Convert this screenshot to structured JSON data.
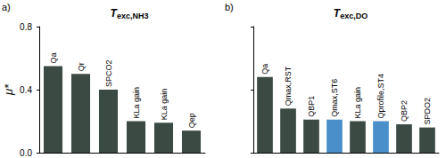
{
  "chart_data": [
    {
      "type": "bar",
      "panel": "a)",
      "title": "Texc,NH3",
      "y_label": "μ*",
      "categories": [
        "Qa",
        "Qr",
        "SPCO2",
        "KLa gain",
        "KLa gain",
        "Qep"
      ],
      "values": [
        0.55,
        0.5,
        0.4,
        0.2,
        0.19,
        0.14
      ],
      "color": "#3c4a44",
      "ylim": [
        0,
        0.8
      ],
      "yticks": [
        {
          "value": 0,
          "label": "0.0"
        },
        0.4,
        0.8
      ],
      "grid": false,
      "tick_labels": "y"
    },
    {
      "type": "bar",
      "panel": "b)",
      "title": "Texc,DO",
      "categories": [
        "Qa",
        "Qmax,RST",
        "QBP1",
        "Qmax,ST6",
        "KLa gain",
        "Qprofile,ST4",
        "QBP2",
        "SPDO2"
      ],
      "values": [
        0.48,
        0.28,
        0.21,
        0.21,
        0.2,
        0.2,
        0.18,
        0.16
      ],
      "colors": [
        "#3c4a44",
        "#3c4a44",
        "#3c4a44",
        "#4a8fc9",
        "#3c4a44",
        "#4a8fc9",
        "#3c4a44",
        "#3c4a44"
      ],
      "ylim": [
        0,
        0.8
      ],
      "yticks": [
        {
          "value": 0,
          "label": "0.0"
        },
        0.4,
        0.8
      ],
      "grid": false,
      "tick_labels": false
    }
  ]
}
